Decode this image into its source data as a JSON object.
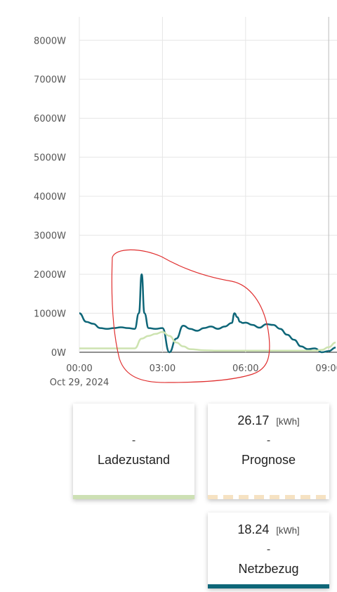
{
  "chart_data": {
    "type": "line",
    "y_ticks": [
      "0W",
      "1000W",
      "2000W",
      "3000W",
      "4000W",
      "5000W",
      "6000W",
      "7000W",
      "8000W"
    ],
    "ylim": [
      0,
      8600
    ],
    "x_ticks": [
      "00:00",
      "03:00",
      "06:00",
      "09:00"
    ],
    "x_date": "Oct 29, 2024",
    "xlim": [
      0,
      9.3
    ],
    "series": [
      {
        "color": "#0e6678",
        "x": [
          0,
          0.25,
          0.5,
          0.75,
          1,
          1.25,
          1.5,
          1.75,
          2,
          2.15,
          2.25,
          2.35,
          2.5,
          2.75,
          3,
          3.25,
          3.5,
          3.75,
          4,
          4.25,
          4.5,
          4.75,
          5,
          5.25,
          5.5,
          5.6,
          5.7,
          5.8,
          5.9,
          6,
          6.25,
          6.5,
          6.75,
          7,
          7.25,
          7.5,
          7.75,
          8,
          8.25,
          8.5,
          8.75,
          9,
          9.25
        ],
        "y": [
          1000,
          780,
          730,
          620,
          600,
          620,
          640,
          620,
          600,
          1000,
          2000,
          1000,
          620,
          600,
          620,
          0,
          350,
          680,
          600,
          550,
          620,
          660,
          600,
          660,
          750,
          1000,
          900,
          780,
          750,
          760,
          700,
          630,
          720,
          700,
          600,
          450,
          320,
          150,
          80,
          100,
          0,
          30,
          120
        ]
      },
      {
        "color": "#cde3b0",
        "x": [
          0,
          0.5,
          1,
          1.5,
          1.75,
          2,
          2.25,
          2.5,
          2.75,
          3,
          3.25,
          3.5,
          3.75,
          4,
          4.5,
          5,
          5.5,
          6,
          6.5,
          7,
          7.5,
          8,
          8.5,
          8.75,
          9,
          9.25
        ],
        "y": [
          100,
          100,
          100,
          100,
          100,
          100,
          350,
          420,
          470,
          520,
          420,
          250,
          150,
          80,
          50,
          40,
          40,
          40,
          40,
          40,
          40,
          40,
          40,
          60,
          130,
          250
        ]
      }
    ]
  },
  "cards": [
    {
      "value": "",
      "unit": "",
      "dash": "-",
      "label": "Ladezustand",
      "bar_color": "#cde0b4"
    },
    {
      "value": "26.17",
      "unit": "[kWh]",
      "dash": "-",
      "label": "Prognose",
      "bar_color": "#f6e2c2"
    },
    {
      "value": "18.24",
      "unit": "[kWh]",
      "dash": "-",
      "label": "Netzbezug",
      "bar_color": "#0e6678"
    }
  ],
  "annotation_color": "#e03030"
}
